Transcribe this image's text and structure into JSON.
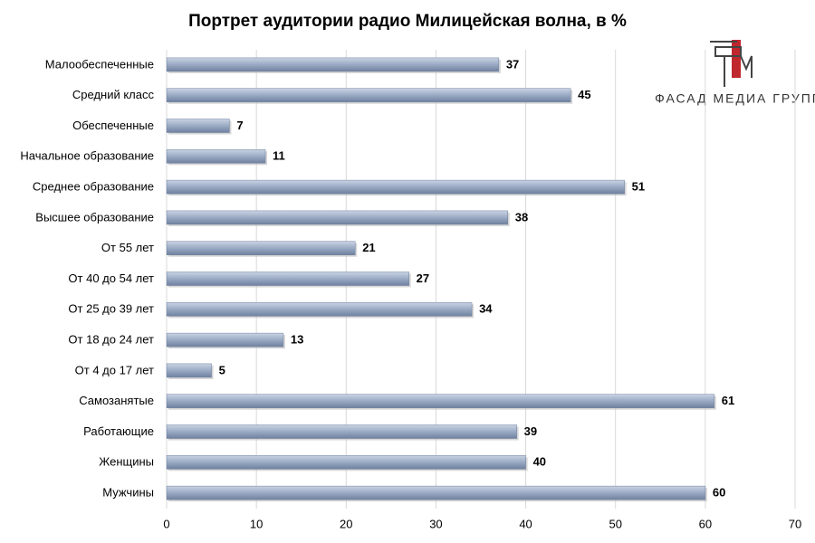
{
  "chart_data": {
    "type": "barh",
    "title": "Портрет аудитории радио Милицейская волна, в %",
    "categories": [
      "Малообеспеченные",
      "Средний класс",
      "Обеспеченные",
      "Начальное образование",
      "Среднее образование",
      "Высшее образование",
      "От 55 лет",
      "От 40 до 54 лет",
      "От 25 до 39 лет",
      "От 18 до 24 лет",
      "От 4 до 17 лет",
      "Самозанятые",
      "Работающие",
      "Женщины",
      "Мужчины"
    ],
    "values": [
      37,
      45,
      7,
      11,
      51,
      38,
      21,
      27,
      34,
      13,
      5,
      61,
      39,
      40,
      60
    ],
    "color": "#9aaac4",
    "xlim": [
      0,
      70
    ],
    "xticks": [
      0,
      10,
      20,
      30,
      40,
      50,
      60,
      70
    ],
    "grid": true,
    "data_labels": true
  },
  "logo": {
    "text": "ФАСАД МЕДИА ГРУПП"
  }
}
